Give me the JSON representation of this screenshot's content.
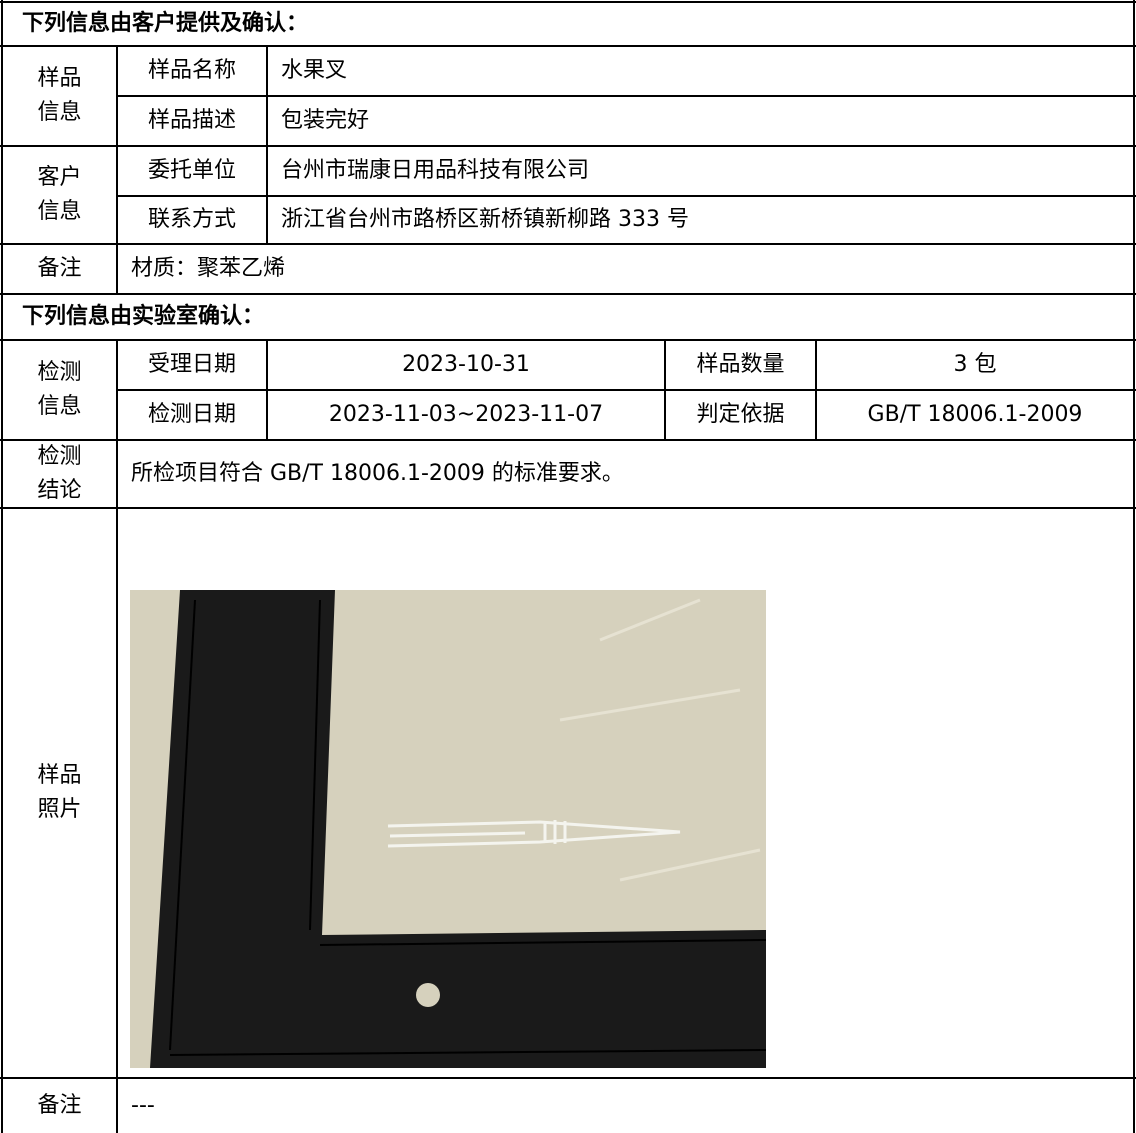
{
  "customer_section": {
    "title": "下列信息由客户提供及确认：",
    "groups": [
      {
        "label": "样品信息",
        "rows": [
          [
            "样品名称",
            "水果叉"
          ],
          [
            "样品描述",
            "包装完好"
          ]
        ]
      },
      {
        "label": "客户信息",
        "rows": [
          [
            "委托单位",
            "台州市瑞康日用品科技有限公司"
          ],
          [
            "联系方式",
            "浙江省台州市路桥区新桥镇新柳路 333 号"
          ]
        ]
      }
    ],
    "remark": {
      "label": "备注",
      "value": "材质：聚苯乙烯"
    }
  },
  "lab_section": {
    "title": "下列信息由实验室确认：",
    "test_info": {
      "label": "检测信息",
      "rows": [
        [
          "受理日期",
          "2023-10-31",
          "样品数量",
          "3 包"
        ],
        [
          "检测日期",
          "2023-11-03~2023-11-07",
          "判定依据",
          "GB/T 18006.1-2009"
        ]
      ]
    },
    "conclusion": {
      "label": "检测结论",
      "value": "所检项目符合 GB/T 18006.1-2009 的标准要求。"
    },
    "photo": {
      "label": "样品照片"
    },
    "remark": {
      "label": "备注",
      "value": "---"
    }
  }
}
